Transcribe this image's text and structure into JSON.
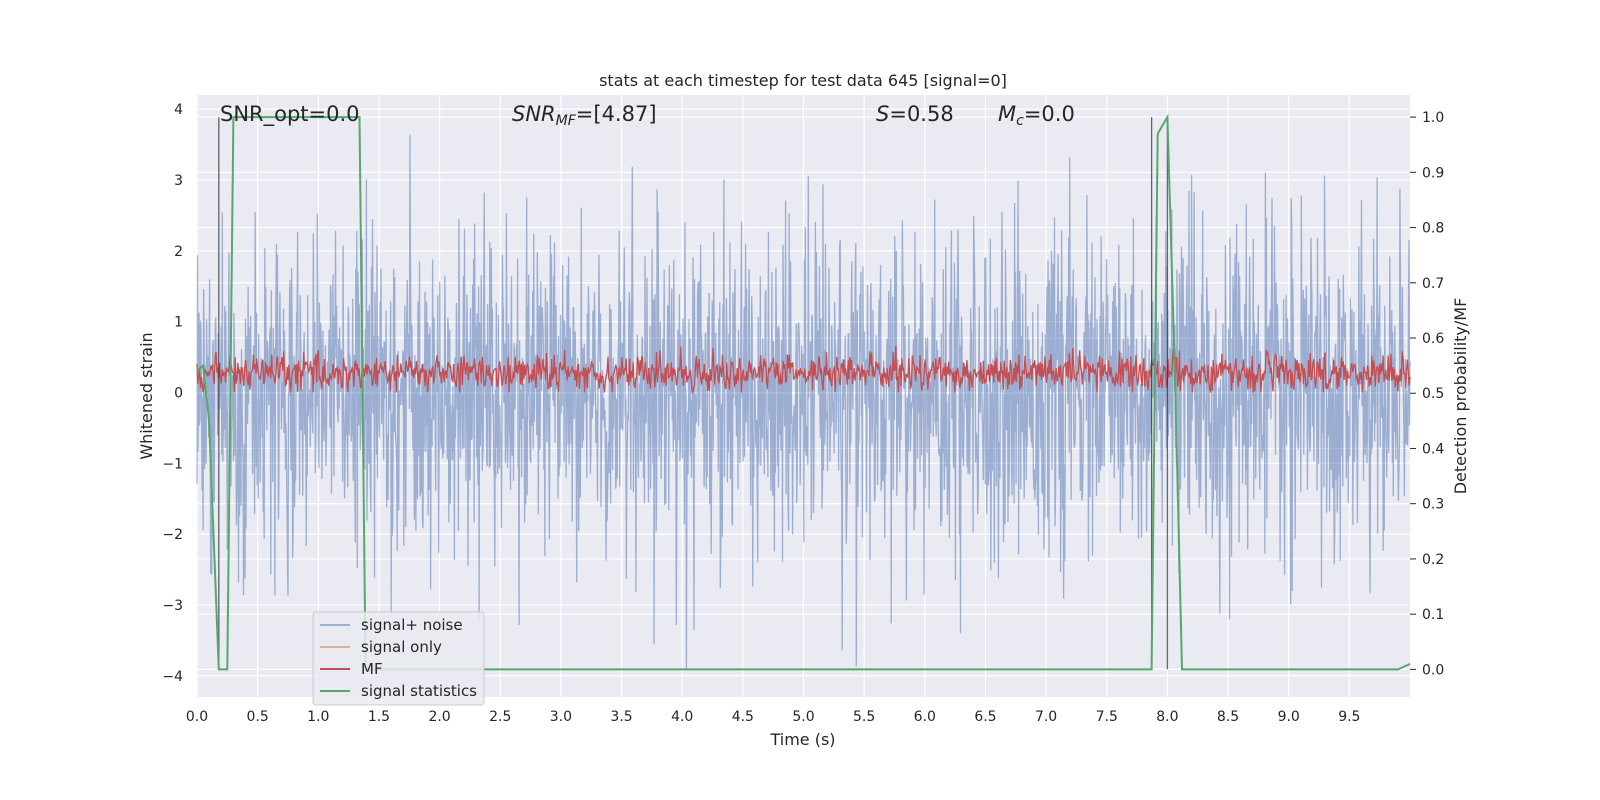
{
  "chart_data": {
    "type": "line",
    "title": "stats at each timestep for test data 645 [signal=0]",
    "xlabel": "Time (s)",
    "ylabel_left": "Whitened strain",
    "ylabel_right": "Detection probability/MF",
    "xlim": [
      0.0,
      10.0
    ],
    "ylim_left": [
      -4.3,
      4.2
    ],
    "ylim_right": [
      -0.05,
      1.04
    ],
    "x_ticks": [
      "0.0",
      "0.5",
      "1.0",
      "1.5",
      "2.0",
      "2.5",
      "3.0",
      "3.5",
      "4.0",
      "4.5",
      "5.0",
      "5.5",
      "6.0",
      "6.5",
      "7.0",
      "7.5",
      "8.0",
      "8.5",
      "9.0",
      "9.5"
    ],
    "y_ticks_left": [
      "−4",
      "−3",
      "−2",
      "−1",
      "0",
      "1",
      "2",
      "3",
      "4"
    ],
    "y_ticks_right": [
      "0.0",
      "0.1",
      "0.2",
      "0.3",
      "0.4",
      "0.5",
      "0.6",
      "0.7",
      "0.8",
      "0.9",
      "1.0"
    ],
    "grid": true,
    "legend_placement": "lower-left",
    "annotations": {
      "snr_opt": "SNR_opt=0.0",
      "snr_mf_base": "SNR",
      "snr_mf_sub": "MF",
      "snr_mf_value": "=[4.87]",
      "s_label": "S",
      "s_value": "=0.58",
      "mc_base": "M",
      "mc_sub": "c",
      "mc_value": "=0.0"
    },
    "series": [
      {
        "name": "signal+ noise",
        "color": "#4c72b0",
        "note": "dense noise fluctuating roughly between -4 and 4 (left axis)"
      },
      {
        "name": "signal only",
        "color": "#dd8452",
        "values": []
      },
      {
        "name": "MF",
        "color": "#c44e52",
        "range_left_axis": [
          0.0,
          0.8
        ]
      },
      {
        "name": "signal statistics",
        "color": "#55a868",
        "axis": "right",
        "x": [
          0.0,
          0.05,
          0.1,
          0.18,
          0.25,
          0.3,
          1.3,
          1.34,
          1.39,
          7.87,
          7.92,
          8.0,
          8.06,
          8.12,
          9.9,
          10.0
        ],
        "y": [
          0.54,
          0.55,
          0.45,
          0.0,
          0.0,
          1.0,
          1.0,
          1.0,
          0.0,
          0.0,
          0.97,
          1.0,
          0.55,
          0.0,
          0.0,
          0.01
        ]
      }
    ],
    "vertical_lines_x": [
      0.18,
      7.87,
      8.0
    ]
  },
  "colors": {
    "plot_background": "#eaeaf2",
    "grid": "#ffffff"
  }
}
